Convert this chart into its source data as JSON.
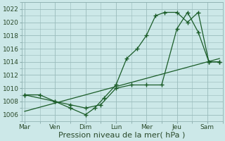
{
  "xlabel": "Pression niveau de la mer( hPa )",
  "xlabel_fontsize": 8,
  "bg_color": "#cce8e8",
  "grid_color": "#99bbbb",
  "line_color": "#1a5c28",
  "ylim": [
    1005,
    1023
  ],
  "yticks": [
    1006,
    1008,
    1010,
    1012,
    1014,
    1016,
    1018,
    1020,
    1022
  ],
  "x_labels": [
    "Mar",
    "Ven",
    "Dim",
    "Lun",
    "Mer",
    "Jeu",
    "Sam"
  ],
  "x_positions": [
    0,
    1,
    2,
    3,
    4,
    5,
    6
  ],
  "xlim": [
    -0.1,
    6.5
  ],
  "series1_x": [
    0,
    1,
    1.5,
    2,
    2.3,
    2.6,
    3.0,
    3.35,
    3.7,
    4.0,
    4.3,
    4.6,
    5.0,
    5.35,
    5.7,
    6.05,
    6.4
  ],
  "series1_y": [
    1009,
    1008,
    1007,
    1006,
    1007,
    1008.5,
    1010.5,
    1014.5,
    1016,
    1018,
    1021,
    1021.5,
    1021.5,
    1020,
    1021.5,
    1014,
    1014
  ],
  "series2_x": [
    0,
    0.5,
    1.0,
    1.5,
    2.0,
    2.5,
    3.0,
    3.5,
    4.0,
    4.5,
    5.0,
    5.35,
    5.7,
    6.05,
    6.4
  ],
  "series2_y": [
    1009,
    1009,
    1008,
    1007.5,
    1007,
    1007.5,
    1010,
    1010.5,
    1010.5,
    1010.5,
    1019,
    1021.5,
    1018.5,
    1014,
    1014
  ],
  "series3_x": [
    0,
    6.4
  ],
  "series3_y": [
    1006.5,
    1014.5
  ],
  "marker_size": 2.5
}
